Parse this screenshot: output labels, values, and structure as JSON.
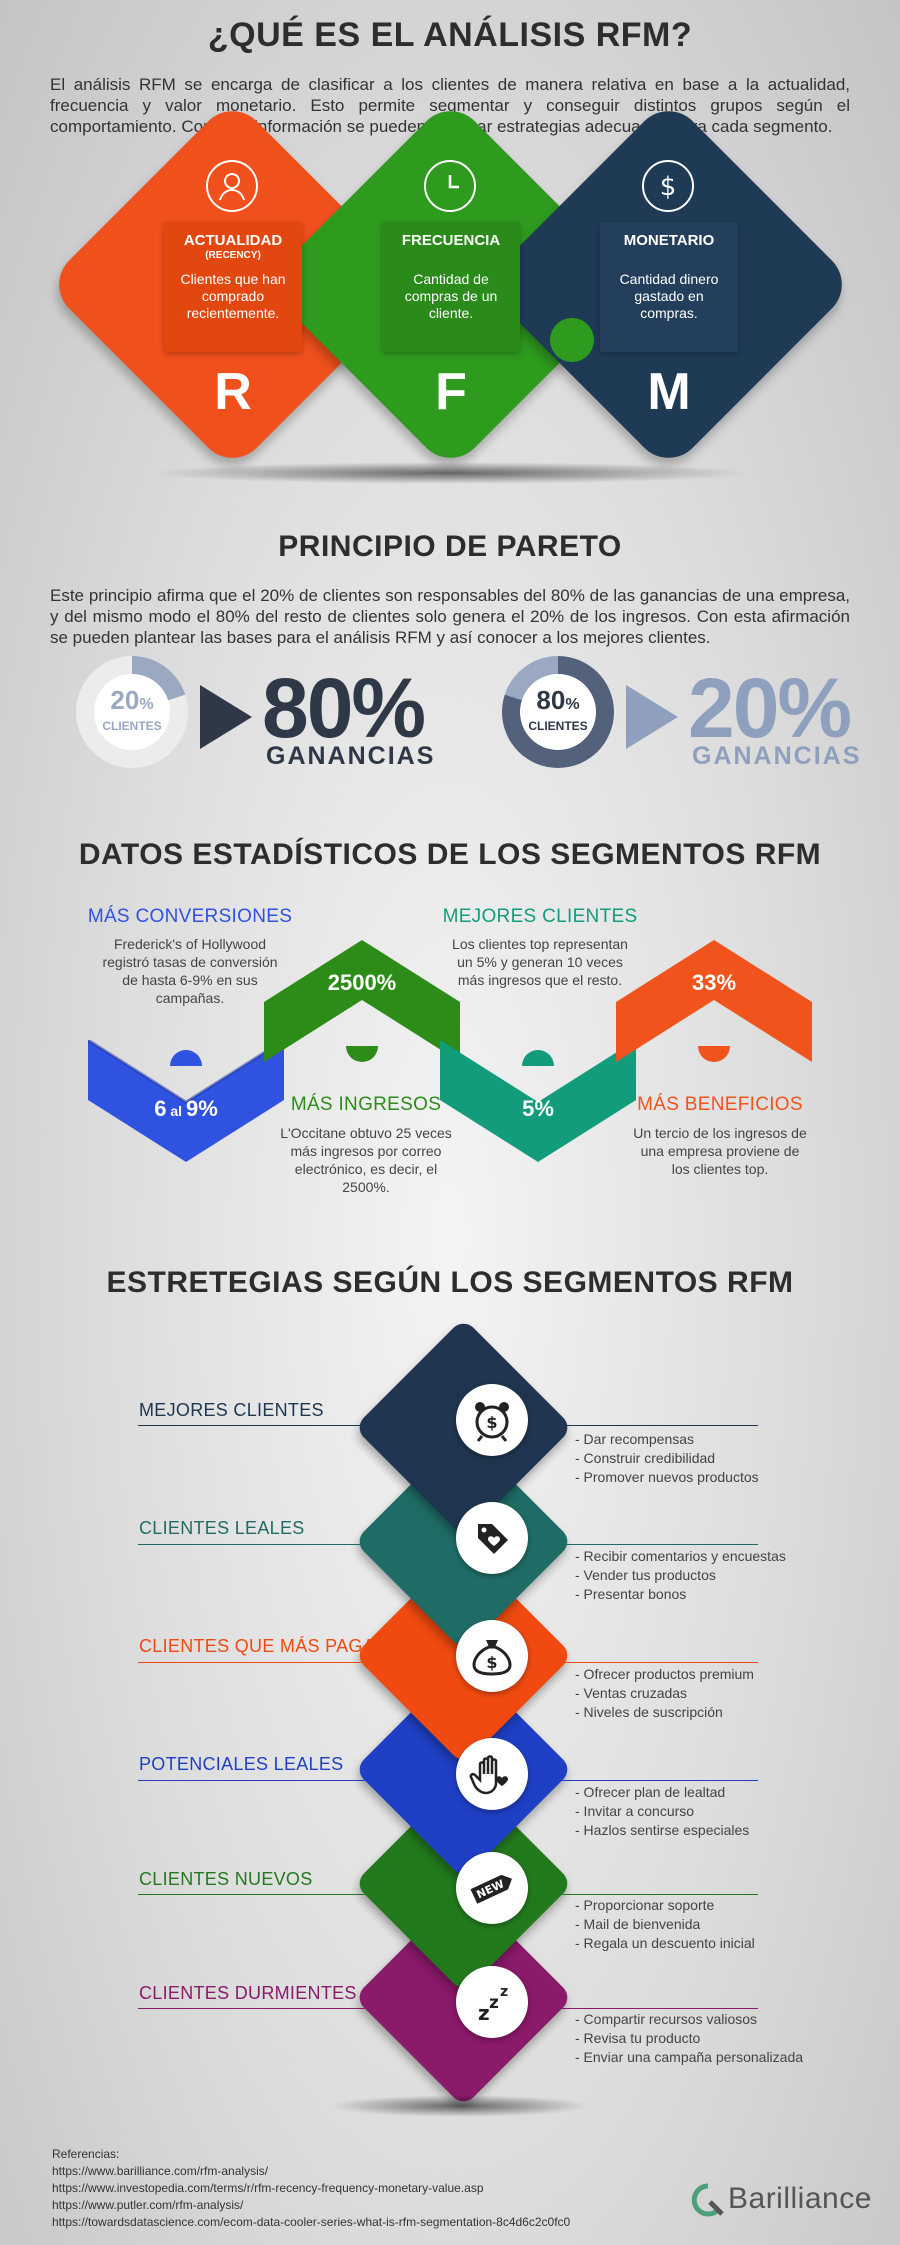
{
  "rfm": {
    "title": "¿QUÉ ES EL ANÁLISIS RFM?",
    "intro": "El análisis RFM se encarga de clasificar a los clientes de manera relativa en base a la actualidad, frecuencia y valor monetario. Esto permite segmentar y conseguir distintos grupos según el comportamiento. Con esta información se pueden plantear estrategias adecuadas para cada segmento.",
    "items": [
      {
        "title": "ACTUALIDAD",
        "subtitle": "(RECENCY)",
        "desc": "Clientes que han comprado recientemente.",
        "letter": "R",
        "icon": "person-icon",
        "color": "#f0501c"
      },
      {
        "title": "FRECUENCIA",
        "subtitle": "",
        "desc": "Cantidad de compras de un cliente.",
        "letter": "F",
        "icon": "clock-icon",
        "color": "#2e9a1e"
      },
      {
        "title": "MONETARIO",
        "subtitle": "",
        "desc": "Cantidad dinero gastado en compras.",
        "letter": "M",
        "icon": "dollar-icon",
        "color": "#1f3a55"
      }
    ]
  },
  "pareto": {
    "title": "PRINCIPIO DE PARETO",
    "text": "Este principio afirma que el 20% de clientes son responsables del 80% de las ganancias de una empresa, y del mismo modo el 80% del resto de clientes solo genera el 20% de los ingresos. Con esta afirmación se pueden plantear las bases para el análisis RFM y así conocer a los mejores clientes.",
    "left": {
      "ring_num": "20",
      "ring_pct": "%",
      "ring_label": "CLIENTES",
      "big": "80%",
      "label": "GANANCIAS",
      "fill": 0.2
    },
    "right": {
      "ring_num": "80",
      "ring_pct": "%",
      "ring_label": "CLIENTES",
      "big": "20%",
      "label": "GANANCIAS",
      "fill": 0.8
    }
  },
  "stats": {
    "title": "DATOS ESTADÍSTICOS DE LOS SEGMENTOS RFM",
    "items": [
      {
        "title": "MÁS CONVERSIONES",
        "text": "Frederick's of Hollywood registró tasas de conversión de hasta 6-9% en sus campañas.",
        "value_a": "6",
        "value_mid": " al ",
        "value_b": "9%",
        "color": "#2f52e0",
        "title_color": "#2f52e0"
      },
      {
        "title": "MÁS INGRESOS",
        "text": "L'Occitane obtuvo 25 veces más ingresos por correo electrónico, es decir, el 2500%.",
        "value": "2500%",
        "color": "#2c8c17",
        "title_color": "#2c8c17"
      },
      {
        "title": "MEJORES CLIENTES",
        "text": "Los clientes top representan un 5% y generan 10 veces más ingresos que el resto.",
        "value": "5%",
        "color": "#129c7c",
        "title_color": "#129c7c"
      },
      {
        "title": "MÁS BENEFICIOS",
        "text": "Un tercio de los ingresos de una empresa proviene de los clientes top.",
        "value": "33%",
        "color": "#f0541c",
        "title_color": "#f0541c"
      }
    ]
  },
  "strategies": {
    "title": "ESTRETEGIAS SEGÚN LOS SEGMENTOS RFM",
    "items": [
      {
        "label": "MEJORES CLIENTES",
        "color": "#1f3550",
        "label_color": "#1f3550",
        "icon": "alarm-clock-money-icon",
        "bullets": [
          "- Dar recompensas",
          "- Construir credibilidad",
          "- Promover nuevos productos"
        ]
      },
      {
        "label": "CLIENTES LEALES",
        "color": "#1f6c66",
        "label_color": "#1f6c66",
        "icon": "heart-tag-icon",
        "bullets": [
          "- Recibir comentarios y encuestas",
          "- Vender tus productos",
          "- Presentar bonos"
        ]
      },
      {
        "label": "CLIENTES QUE MÁS PAGAN",
        "color": "#f04a10",
        "label_color": "#f04a10",
        "icon": "money-bag-icon",
        "bullets": [
          "- Ofrecer productos premium",
          "- Ventas cruzadas",
          "- Niveles de suscripción"
        ]
      },
      {
        "label": "POTENCIALES LEALES",
        "color": "#1f3fc4",
        "label_color": "#1f3fc4",
        "icon": "hand-heart-icon",
        "bullets": [
          "- Ofrecer plan de lealtad",
          "- Invitar a concurso",
          "- Hazlos sentirse especiales"
        ]
      },
      {
        "label": "CLIENTES NUEVOS",
        "color": "#237a1d",
        "label_color": "#237a1d",
        "icon": "new-tag-icon",
        "bullets": [
          "- Proporcionar soporte",
          "- Mail de bienvenida",
          "- Regala un descuento inicial"
        ]
      },
      {
        "label": "CLIENTES DURMIENTES",
        "color": "#8a1a6a",
        "label_color": "#8a1a6a",
        "icon": "sleep-zzz-icon",
        "bullets": [
          "- Compartir recursos valiosos",
          "- Revisa tu producto",
          "- Enviar una campaña personalizada"
        ]
      }
    ]
  },
  "references": {
    "title": "Referencias:",
    "links": [
      "https://www.barilliance.com/rfm-analysis/",
      "https://www.investopedia.com/terms/r/rfm-recency-frequency-monetary-value.asp",
      "https://www.putler.com/rfm-analysis/",
      "https://towardsdatascience.com/ecom-data-cooler-series-what-is-rfm-segmentation-8c4d6c2c0fc0"
    ]
  },
  "brand": {
    "name": "Barilliance",
    "color": "#555555",
    "accent": "#4aa07a"
  }
}
